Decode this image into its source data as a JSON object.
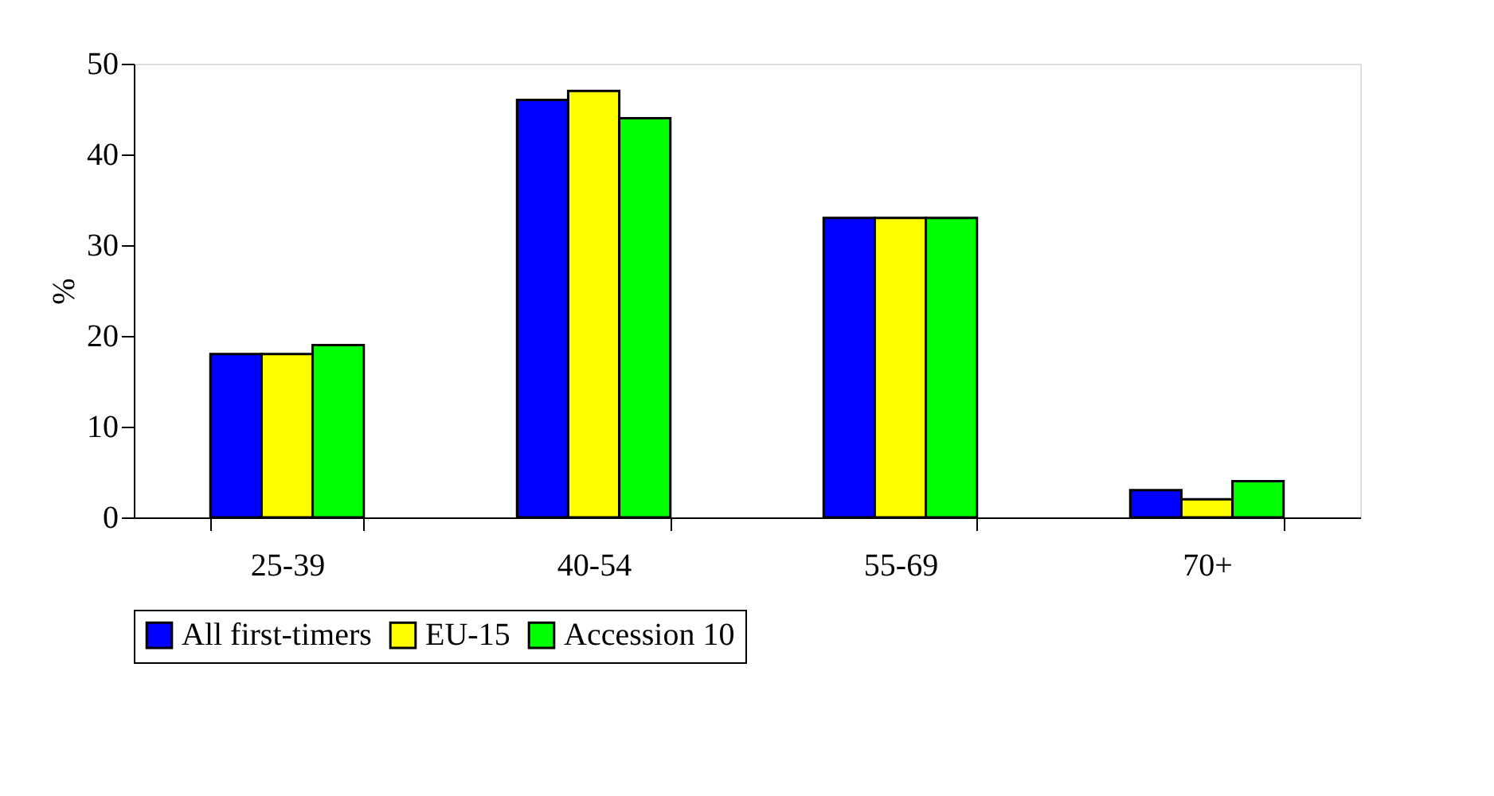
{
  "chart_data": {
    "type": "bar",
    "ylabel": "%",
    "categories": [
      "25-39",
      "40-54",
      "55-69",
      "70+"
    ],
    "series": [
      {
        "name": "All first-timers",
        "color": "#0000ff",
        "values": [
          18,
          46,
          33,
          3
        ]
      },
      {
        "name": "EU-15",
        "color": "#ffff00",
        "values": [
          18,
          47,
          33,
          2
        ]
      },
      {
        "name": "Accession 10",
        "color": "#00ff00",
        "values": [
          19,
          44,
          33,
          4
        ]
      }
    ],
    "ylim": [
      0,
      50
    ],
    "yticks": [
      0,
      10,
      20,
      30,
      40,
      50
    ],
    "grid": false,
    "legend": "bottom"
  }
}
